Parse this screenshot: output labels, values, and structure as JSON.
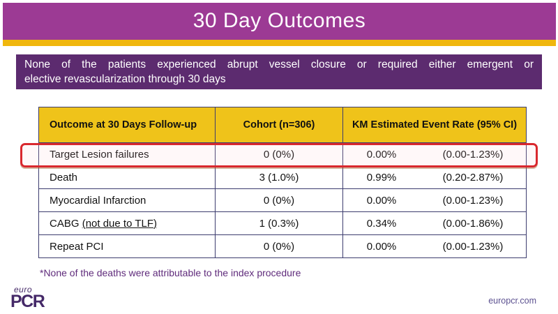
{
  "header": {
    "title": "30 Day Outcomes"
  },
  "statement": {
    "line1": "None of the patients experienced abrupt vessel closure or required either emergent or",
    "line2": "elective revascularization through 30 days"
  },
  "table": {
    "headers": [
      "Outcome at 30 Days Follow-up",
      "Cohort (n=306)",
      "KM Estimated Event Rate (95% CI)"
    ],
    "rows": [
      {
        "outcome": "Target Lesion failures",
        "outcome_underlined": "",
        "cohort": "0 (0%)",
        "rate": "0.00%",
        "ci": "(0.00-1.23%)",
        "highlighted": true
      },
      {
        "outcome": "Death",
        "outcome_underlined": "",
        "cohort": "3 (1.0%)",
        "rate": "0.99%",
        "ci": "(0.20-2.87%)",
        "highlighted": false
      },
      {
        "outcome": "Myocardial Infarction",
        "outcome_underlined": "",
        "cohort": "0 (0%)",
        "rate": "0.00%",
        "ci": "(0.00-1.23%)",
        "highlighted": false
      },
      {
        "outcome": "CABG",
        "outcome_underlined": "(not due to TLF)",
        "cohort": "1 (0.3%)",
        "rate": "0.34%",
        "ci": "(0.00-1.86%)",
        "highlighted": false
      },
      {
        "outcome": "Repeat PCI",
        "outcome_underlined": "",
        "cohort": "0 (0%)",
        "rate": "0.00%",
        "ci": "(0.00-1.23%)",
        "highlighted": false
      }
    ]
  },
  "footnote": "*None of the deaths were attributable to the index procedure",
  "footer": {
    "logo_top": "euro",
    "logo_main": "PCR",
    "website": "europcr.com"
  },
  "colors": {
    "band_purple": "#9C3A94",
    "gold_stripe": "#F0B70E",
    "statement_purple": "#5C2B6F",
    "table_header_gold": "#EFC31A",
    "table_border_navy": "#3C3C6E",
    "highlight_red": "#D9282E",
    "footnote_purple": "#5F2B7B",
    "logo_purple": "#452968",
    "website_purple": "#5C5190"
  }
}
